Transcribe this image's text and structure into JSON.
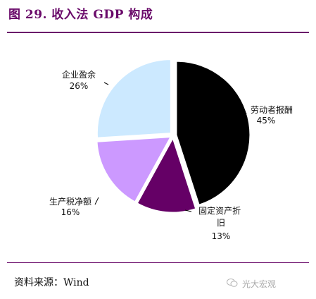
{
  "header": {
    "title": "图 29. 收入法 GDP 构成"
  },
  "footer": {
    "source": "资料来源：Wind"
  },
  "watermark": {
    "text": "光大宏观",
    "icon": "wechat-icon"
  },
  "colors": {
    "title": "#6a0a6a",
    "slices": [
      "#000000",
      "#650066",
      "#cc99ff",
      "#cce9ff"
    ]
  },
  "chart_data": {
    "type": "pie",
    "title": "收入法 GDP 构成",
    "slices": [
      {
        "label": "劳动者报酬",
        "value": 45,
        "value_label": "45%",
        "color": "#000000"
      },
      {
        "label": "固定资产折旧",
        "value": 13,
        "value_label": "13%",
        "color": "#650066"
      },
      {
        "label": "生产税净额",
        "value": 16,
        "value_label": "16%",
        "color": "#cc99ff"
      },
      {
        "label": "企业盈余",
        "value": 26,
        "value_label": "26%",
        "color": "#cce9ff"
      }
    ],
    "start": "12 o'clock",
    "direction": "clockwise",
    "exploded": true,
    "legend": "none"
  }
}
